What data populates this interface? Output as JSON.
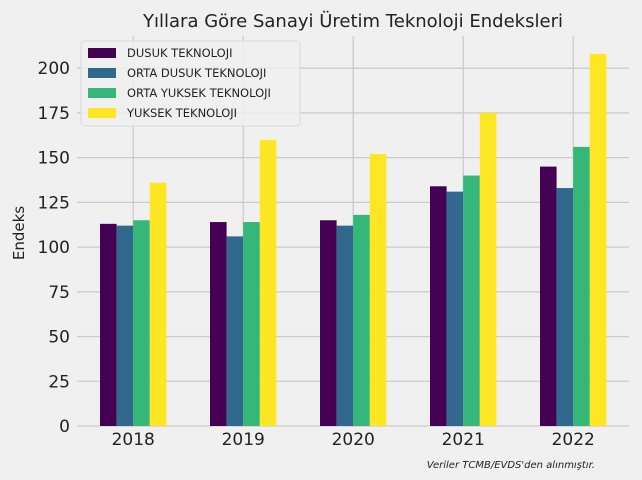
{
  "chart_data": {
    "type": "bar",
    "title": "Yıllara Göre Sanayi Üretim Teknoloji Endeksleri",
    "xlabel": "",
    "ylabel": "Endeks",
    "categories": [
      "2018",
      "2019",
      "2020",
      "2021",
      "2022"
    ],
    "series": [
      {
        "name": "DUSUK TEKNOLOJI",
        "color": "#440154",
        "values": [
          113,
          114,
          115,
          134,
          145
        ]
      },
      {
        "name": "ORTA DUSUK TEKNOLOJI",
        "color": "#31688e",
        "values": [
          112,
          106,
          112,
          131,
          133
        ]
      },
      {
        "name": "ORTA YUKSEK TEKNOLOJI",
        "color": "#35b779",
        "values": [
          115,
          114,
          118,
          140,
          156
        ]
      },
      {
        "name": "YUKSEK TEKNOLOJI",
        "color": "#fde725",
        "values": [
          136,
          160,
          152,
          175,
          208
        ]
      }
    ],
    "ylim": [
      0,
      218
    ],
    "yticks": [
      0,
      25,
      50,
      75,
      100,
      125,
      150,
      175,
      200
    ],
    "grid": true,
    "legend": "top-left",
    "footnote": "Veriler TCMB/EVDS'den alınmıştır."
  }
}
